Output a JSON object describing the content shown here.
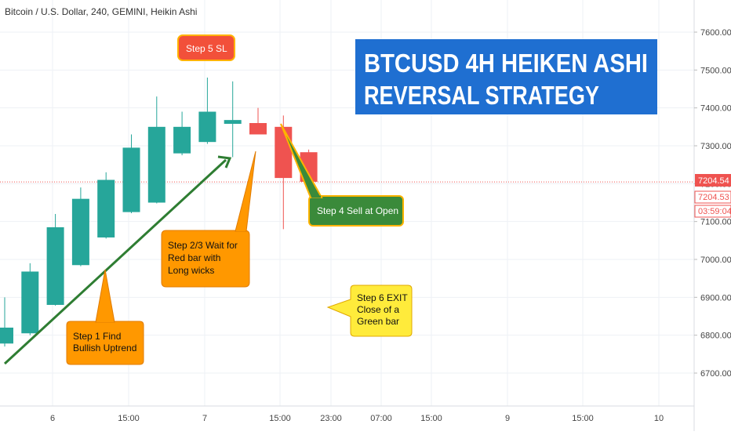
{
  "chart_title": "Bitcoin / U.S. Dollar, 240, GEMINI, Heikin Ashi",
  "banner": {
    "line1": "BTCUSD 4H HEIKEN ASHI",
    "line2": "REVERSAL STRATEGY",
    "color": "#1f6fd1"
  },
  "colors": {
    "up": "#26a69a",
    "down": "#ef5350",
    "grid": "#eef1f5",
    "axis_text": "#444444",
    "arrow": "#2e7d32",
    "price_line": "#ef5350"
  },
  "callouts": {
    "step1": "Step 1 Find\nBullish Uptrend",
    "step23": "Step 2/3 Wait for\nRed bar with\nLong wicks",
    "step4": "Step 4 Sell at Open",
    "step5": "Step 5 SL",
    "step6": "Step 6 EXIT\nClose of a\nGreen bar"
  },
  "price_tags": {
    "last": "7204.54",
    "current": "7204.53",
    "countdown": "03:59:04"
  },
  "chart_data": {
    "type": "candlestick",
    "ylim": [
      6600,
      7680
    ],
    "y_ticks": [
      6700,
      6800,
      6900,
      7000,
      7100,
      7200,
      7300,
      7400,
      7500,
      7600
    ],
    "y_tick_labels": [
      "6700.00",
      "6800.00",
      "6900.00",
      "7000.00",
      "7100.00",
      "7200.00",
      "7300.00",
      "7400.00",
      "7500.00",
      "7600.00"
    ],
    "x_ticks": [
      "6",
      "15:00",
      "7",
      "15:00",
      "23:00",
      "07:00",
      "15:00",
      "9",
      "15:00",
      "10"
    ],
    "candles": [
      {
        "o": 6778,
        "h": 6900,
        "l": 6770,
        "c": 6820
      },
      {
        "o": 6805,
        "h": 6990,
        "l": 6800,
        "c": 6968
      },
      {
        "o": 6880,
        "h": 7120,
        "l": 6878,
        "c": 7085
      },
      {
        "o": 6985,
        "h": 7190,
        "l": 6982,
        "c": 7160
      },
      {
        "o": 7058,
        "h": 7230,
        "l": 7055,
        "c": 7210
      },
      {
        "o": 7125,
        "h": 7330,
        "l": 7122,
        "c": 7295
      },
      {
        "o": 7150,
        "h": 7430,
        "l": 7148,
        "c": 7350
      },
      {
        "o": 7280,
        "h": 7390,
        "l": 7275,
        "c": 7350
      },
      {
        "o": 7310,
        "h": 7480,
        "l": 7305,
        "c": 7390
      },
      {
        "o": 7358,
        "h": 7470,
        "l": 7270,
        "c": 7368
      },
      {
        "o": 7360,
        "h": 7400,
        "l": 7330,
        "c": 7330
      },
      {
        "o": 7350,
        "h": 7380,
        "l": 7080,
        "c": 7215
      },
      {
        "o": 7283,
        "h": 7290,
        "l": 7205,
        "c": 7205
      }
    ]
  }
}
